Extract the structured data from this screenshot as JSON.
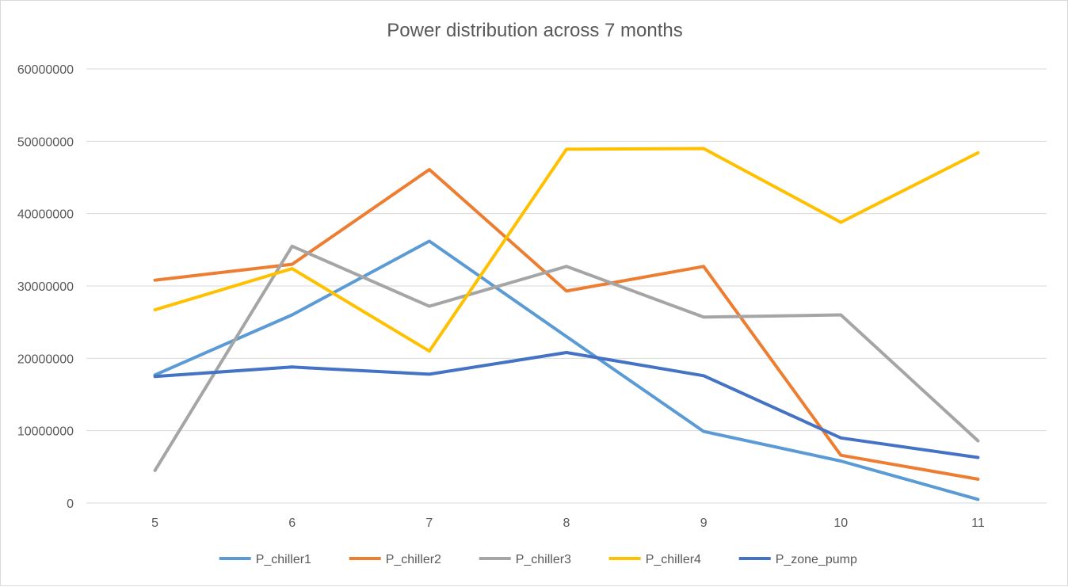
{
  "chart_data": {
    "type": "line",
    "title": "Power distribution across 7 months",
    "xlabel": "",
    "ylabel": "",
    "x": [
      5,
      6,
      7,
      8,
      9,
      10,
      11
    ],
    "x_tick_labels": [
      "5",
      "6",
      "7",
      "8",
      "9",
      "10",
      "11"
    ],
    "y_tick_labels": [
      "0",
      "10000000",
      "20000000",
      "30000000",
      "40000000",
      "50000000",
      "60000000"
    ],
    "ylim": [
      0,
      60000000
    ],
    "grid": "horizontal",
    "legend_position": "bottom",
    "series": [
      {
        "name": "P_chiller1",
        "color": "#5b9bd5",
        "values": [
          17700000,
          26000000,
          36200000,
          23000000,
          9900000,
          5800000,
          500000
        ]
      },
      {
        "name": "P_chiller2",
        "color": "#ed7d31",
        "values": [
          30800000,
          33000000,
          46100000,
          29300000,
          32700000,
          6600000,
          3300000
        ]
      },
      {
        "name": "P_chiller3",
        "color": "#a5a5a5",
        "values": [
          4500000,
          35500000,
          27200000,
          32700000,
          25700000,
          26000000,
          8600000
        ]
      },
      {
        "name": "P_chiller4",
        "color": "#ffc000",
        "values": [
          26700000,
          32400000,
          21000000,
          48900000,
          49000000,
          38800000,
          48400000
        ]
      },
      {
        "name": "P_zone_pump",
        "color": "#4472c4",
        "values": [
          17500000,
          18800000,
          17800000,
          20800000,
          17600000,
          9000000,
          6300000
        ]
      }
    ]
  }
}
